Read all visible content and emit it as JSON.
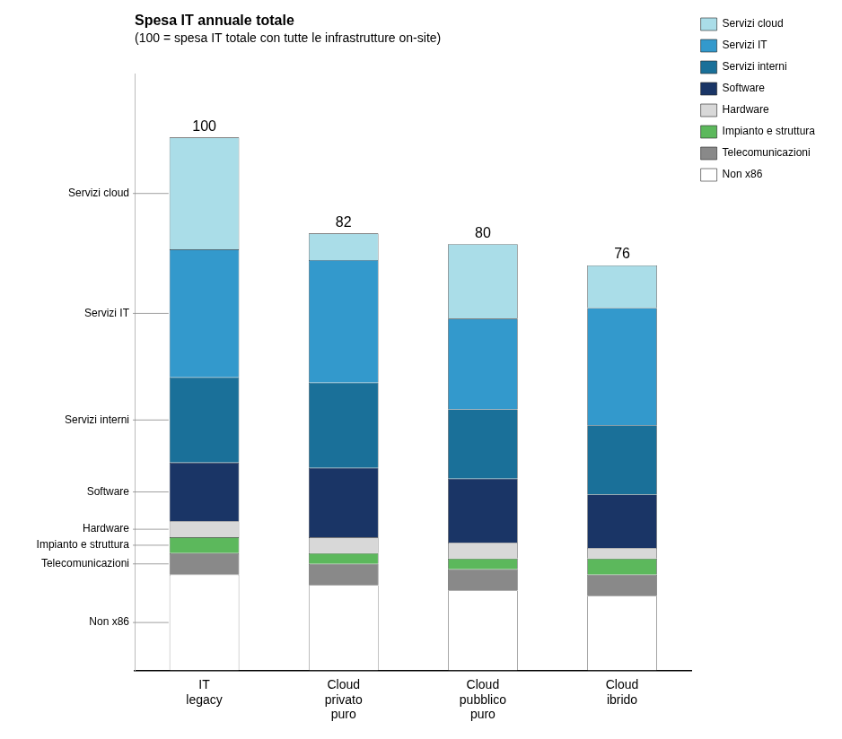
{
  "chart_data": {
    "type": "bar",
    "stacked": true,
    "title": "Spesa IT annuale totale",
    "subtitle": "(100 = spesa IT totale con tutte le infrastrutture on-site)",
    "categories": [
      "IT\nlegacy",
      "Cloud\nprivato\npuro",
      "Cloud\npubblico\npuro",
      "Cloud\nibrido"
    ],
    "series": [
      {
        "name": "Non x86",
        "color": "#ffffff",
        "values": [
          18,
          16,
          15,
          14
        ]
      },
      {
        "name": "Telecomunicazioni",
        "color": "#898989",
        "values": [
          4,
          4,
          4,
          4
        ]
      },
      {
        "name": "Impianto e struttura",
        "color": "#5cb85c",
        "values": [
          3,
          2,
          2,
          3
        ]
      },
      {
        "name": "Hardware",
        "color": "#d8d8d8",
        "values": [
          3,
          3,
          3,
          2
        ]
      },
      {
        "name": "Software",
        "color": "#1a3566",
        "values": [
          11,
          13,
          12,
          10
        ]
      },
      {
        "name": "Servizi interni",
        "color": "#1a7099",
        "values": [
          16,
          16,
          13,
          13
        ]
      },
      {
        "name": "Servizi IT",
        "color": "#3399cc",
        "values": [
          24,
          23,
          17,
          22
        ]
      },
      {
        "name": "Servizi cloud",
        "color": "#aadde8",
        "values": [
          21,
          5,
          14,
          8
        ]
      }
    ],
    "totals": [
      100,
      82,
      80,
      76
    ],
    "ylim": [
      0,
      112
    ],
    "grid": false,
    "legend": "right",
    "tick_labels": "x"
  }
}
